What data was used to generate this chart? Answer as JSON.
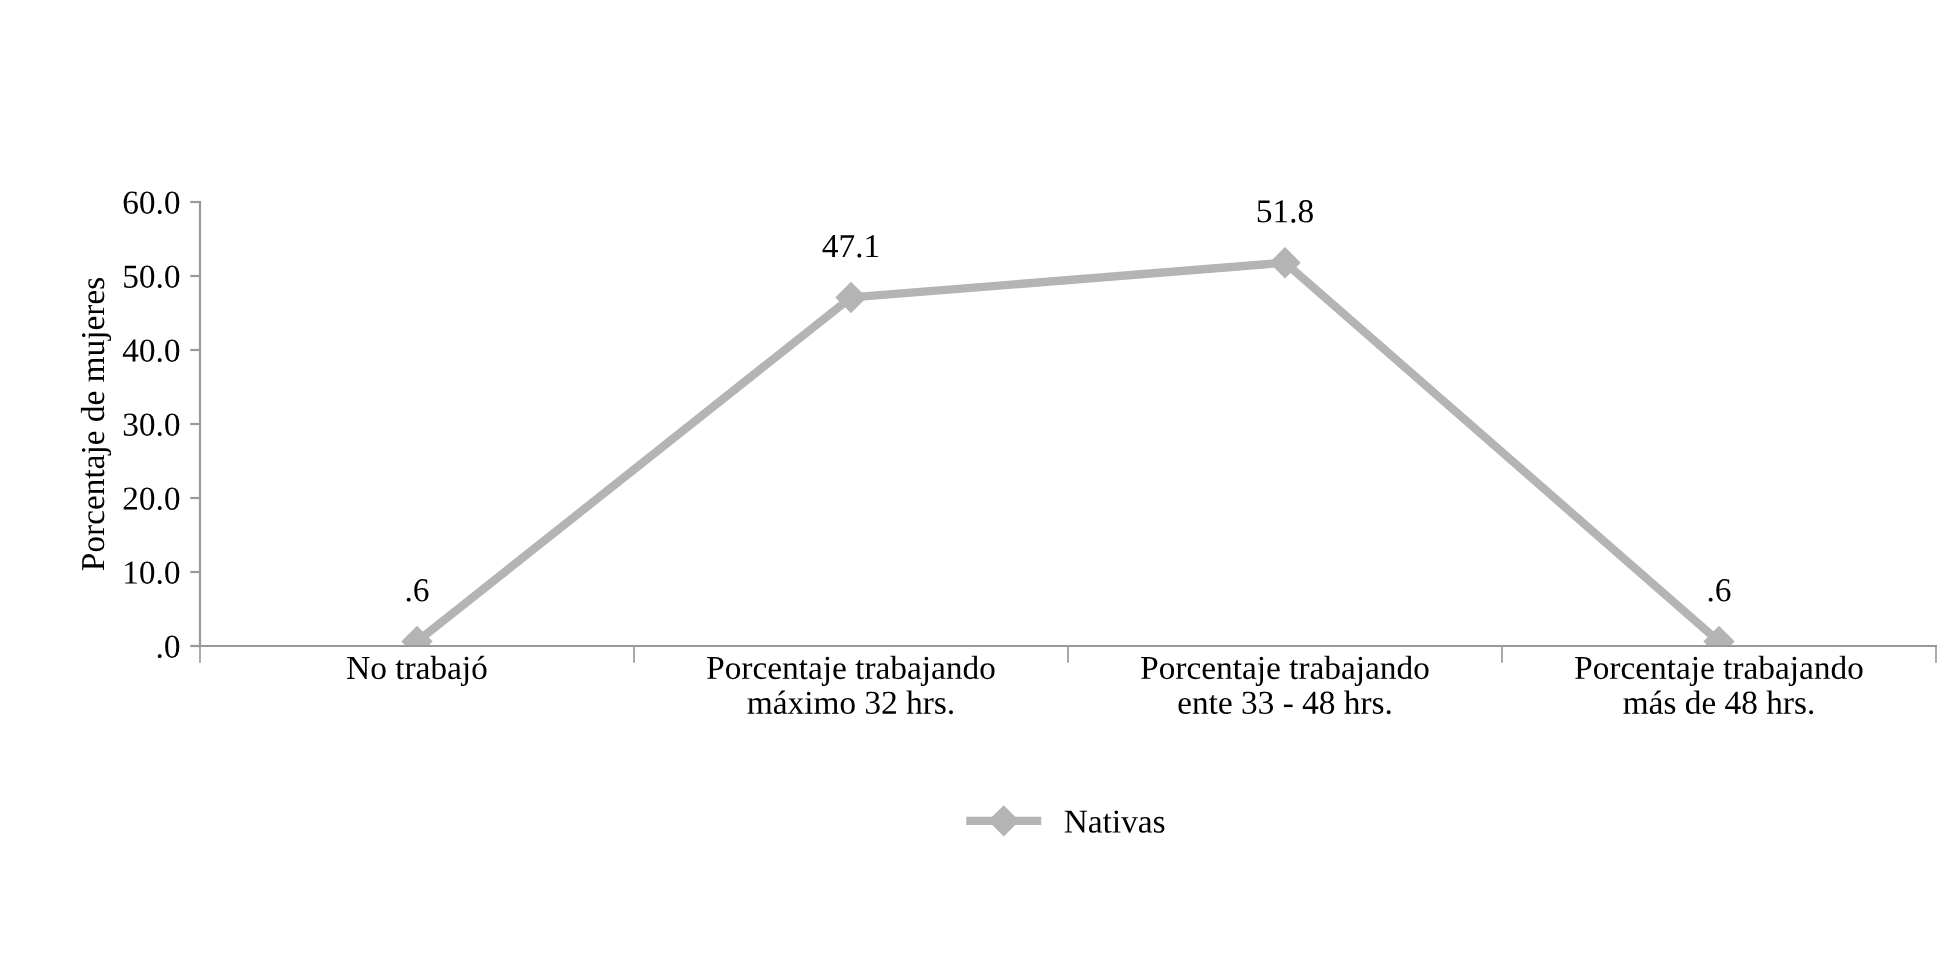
{
  "chart_data": {
    "type": "line",
    "ylabel": "Porcentaje de mujeres",
    "categories": [
      "No trabajó",
      "Porcentaje trabajando\nmáximo 32 hrs.",
      "Porcentaje trabajando\nente 33 - 48 hrs.",
      "Porcentaje trabajando\nmás de 48 hrs."
    ],
    "series": [
      {
        "name": "Nativas",
        "color": "#b4b4b6",
        "values": [
          0.6,
          47.1,
          51.8,
          0.6
        ],
        "value_labels": [
          ".6",
          "47.1",
          "51.8",
          ".6"
        ]
      }
    ],
    "ylim": [
      0,
      60
    ],
    "yticks": [
      {
        "value": 0,
        "label": ".0"
      },
      {
        "value": 10,
        "label": "10.0"
      },
      {
        "value": 20,
        "label": "20.0"
      },
      {
        "value": 30,
        "label": "30.0"
      },
      {
        "value": 40,
        "label": "40.0"
      },
      {
        "value": 50,
        "label": "50.0"
      },
      {
        "value": 60,
        "label": "60.0"
      }
    ],
    "marker": "diamond",
    "line_style": "solid",
    "grid": false,
    "legend": "bottom"
  }
}
